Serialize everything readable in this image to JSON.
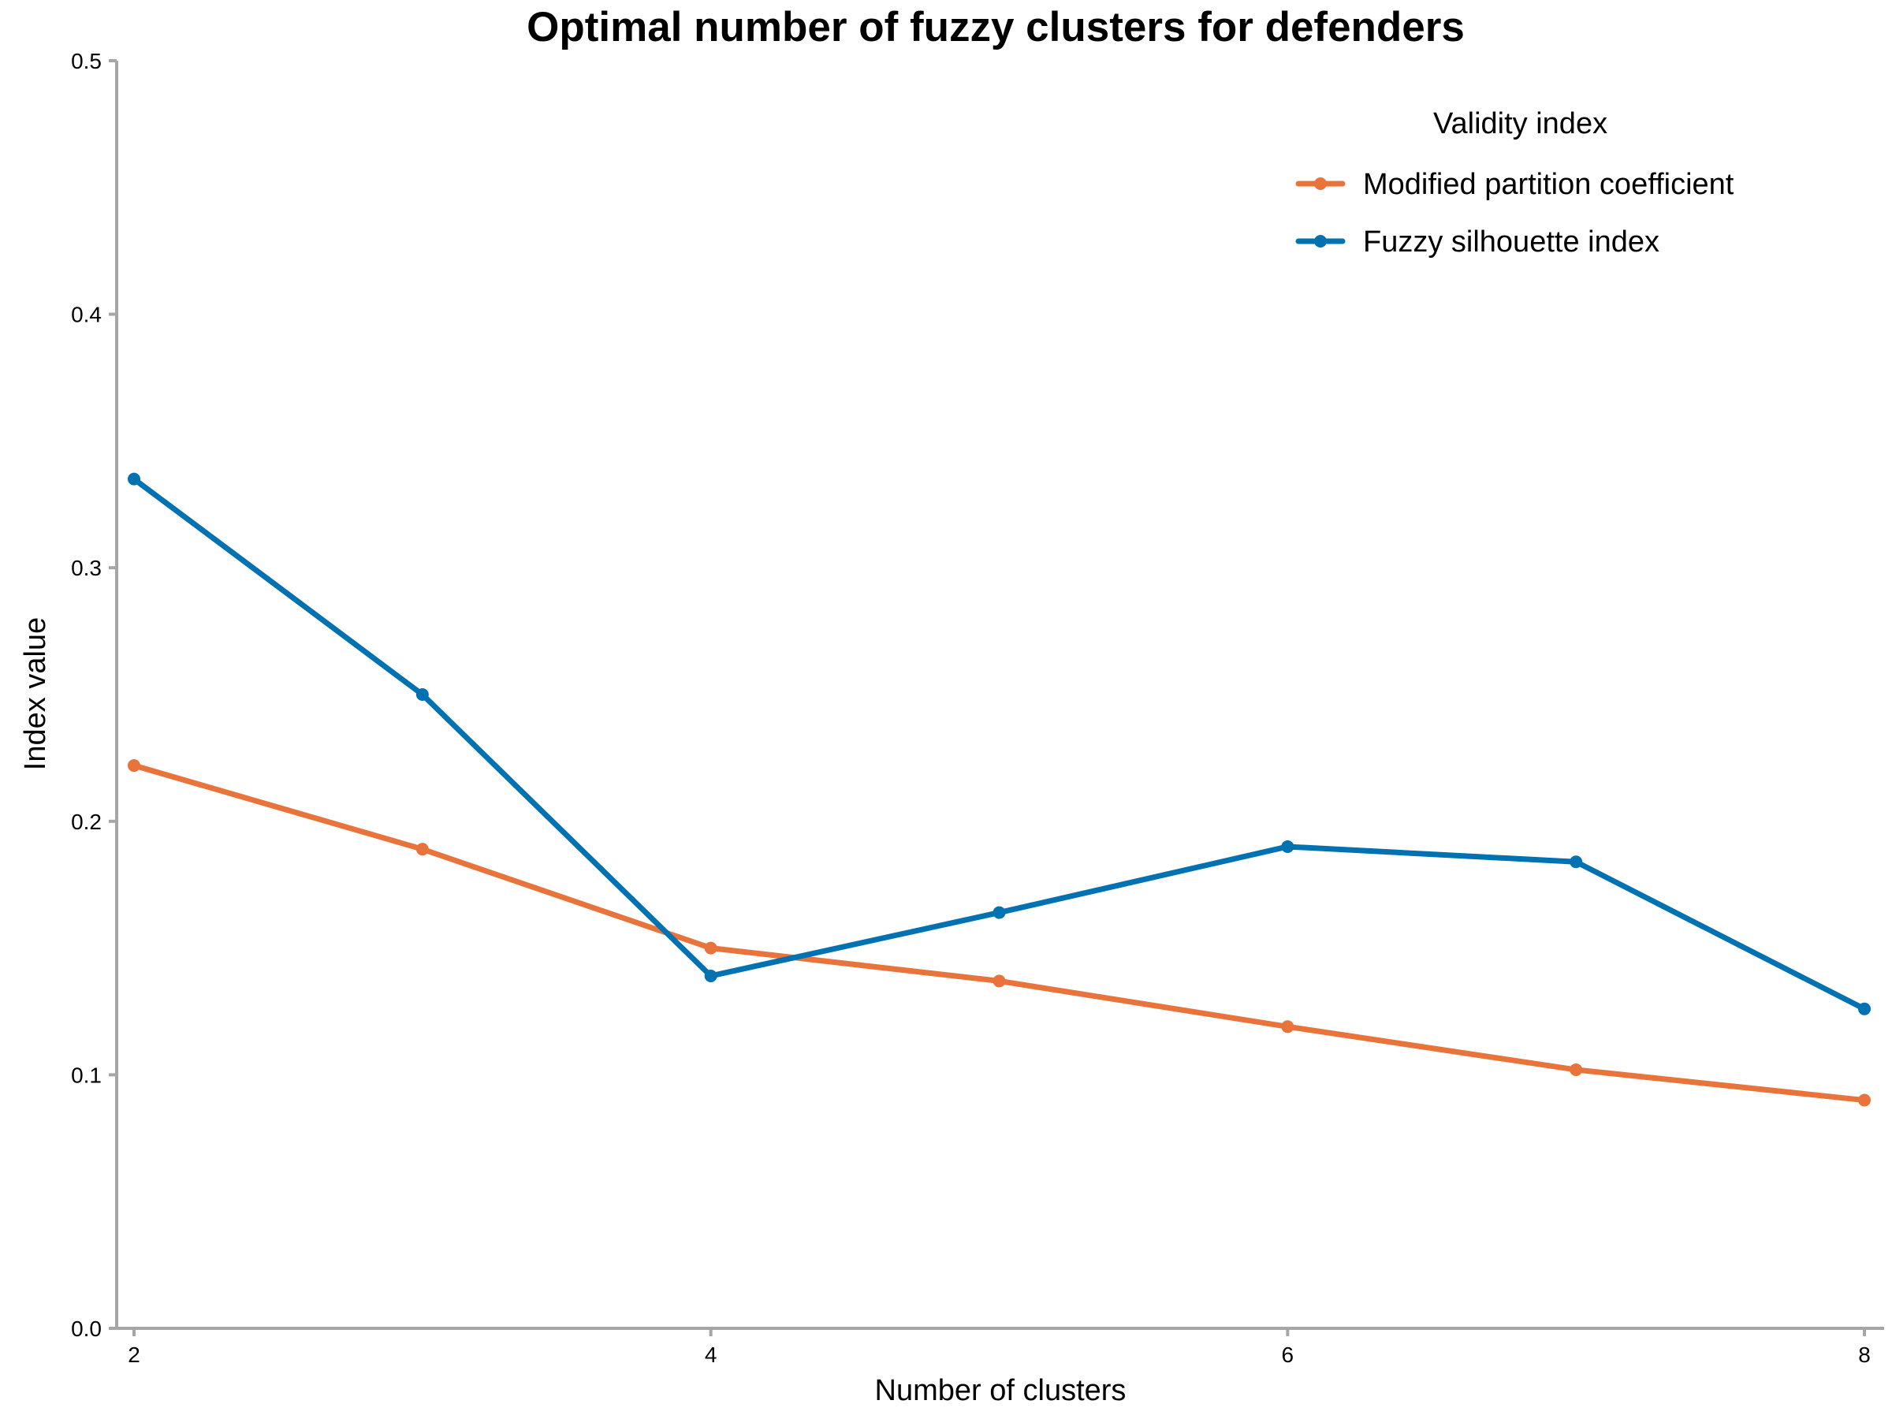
{
  "chart_data": {
    "type": "line",
    "title": "Optimal number of fuzzy clusters for defenders",
    "xlabel": "Number of clusters",
    "ylabel": "Index value",
    "x": [
      2,
      3,
      4,
      5,
      6,
      7,
      8
    ],
    "xlim": [
      2,
      8
    ],
    "ylim": [
      0,
      0.5
    ],
    "x_ticks": [
      "2",
      "4",
      "6",
      "8"
    ],
    "y_ticks": [
      "0.0",
      "0.1",
      "0.2",
      "0.3",
      "0.4",
      "0.5"
    ],
    "grid": false,
    "legend": {
      "title": "Validity index",
      "placement": "top-right"
    },
    "series": [
      {
        "name": "Modified partition coefficient",
        "color": "#e8743b",
        "values": [
          0.222,
          0.189,
          0.15,
          0.137,
          0.119,
          0.102,
          0.09
        ]
      },
      {
        "name": "Fuzzy silhouette index",
        "color": "#0072b2",
        "values": [
          0.335,
          0.25,
          0.139,
          0.164,
          0.19,
          0.184,
          0.126
        ]
      }
    ]
  }
}
